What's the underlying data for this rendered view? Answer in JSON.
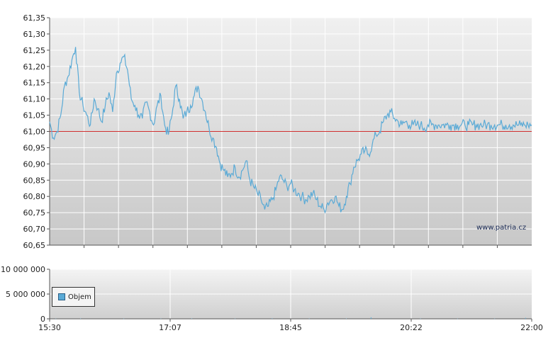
{
  "chart_data": [
    {
      "type": "line",
      "panel": "price",
      "y_ticks": [
        "61,35",
        "61,30",
        "61,25",
        "61,20",
        "61,15",
        "61,10",
        "61,05",
        "61,00",
        "60,95",
        "60,90",
        "60,85",
        "60,80",
        "60,75",
        "60,70",
        "60,65"
      ],
      "ylim": [
        60.65,
        61.35
      ],
      "x_ticks": [
        "15:30",
        "17:07",
        "18:45",
        "20:22",
        "22:00"
      ],
      "reference_value": 61.0,
      "grid": true,
      "series": [
        {
          "color": "#5aaad6",
          "x_minutes": [
            0,
            3,
            6,
            9,
            12,
            15,
            18,
            21,
            24,
            27,
            30,
            33,
            36,
            39,
            42,
            45,
            48,
            51,
            54,
            57,
            60,
            63,
            66,
            69,
            72,
            75,
            78,
            81,
            84,
            87,
            90,
            93,
            96,
            99,
            102,
            105,
            108,
            111,
            114,
            117,
            120,
            123,
            126,
            129,
            132,
            135,
            138,
            141,
            144,
            147,
            150,
            153,
            156,
            159,
            162,
            165,
            168,
            171,
            174,
            177,
            180,
            183,
            186,
            189,
            192,
            195,
            198,
            201,
            204,
            207,
            210,
            213,
            216,
            219,
            222,
            225,
            228,
            231,
            234,
            237,
            240,
            243,
            246,
            249,
            252,
            255,
            258,
            261,
            264,
            267,
            270,
            273,
            276,
            279,
            282,
            285,
            288,
            291,
            294,
            297,
            300,
            303,
            306,
            309,
            312,
            315,
            318,
            321,
            324,
            327,
            330,
            333,
            336,
            339,
            342,
            345,
            348,
            351,
            354,
            357,
            360,
            363,
            366,
            369,
            372,
            375,
            378,
            381,
            384,
            387,
            390
          ],
          "values": [
            61.03,
            60.98,
            61.0,
            61.05,
            61.14,
            61.17,
            61.22,
            61.26,
            61.12,
            61.08,
            61.05,
            61.02,
            61.1,
            61.07,
            61.03,
            61.08,
            61.12,
            61.06,
            61.18,
            61.21,
            61.23,
            61.19,
            61.1,
            61.08,
            61.05,
            61.04,
            61.09,
            61.06,
            61.02,
            61.08,
            61.11,
            61.02,
            60.99,
            61.05,
            61.14,
            61.1,
            61.04,
            61.06,
            61.08,
            61.11,
            61.14,
            61.1,
            61.06,
            61.01,
            60.98,
            60.95,
            60.9,
            60.88,
            60.86,
            60.87,
            60.89,
            60.86,
            60.88,
            60.91,
            60.85,
            60.83,
            60.81,
            60.79,
            60.76,
            60.77,
            60.79,
            60.82,
            60.86,
            60.85,
            60.83,
            60.84,
            60.82,
            60.81,
            60.8,
            60.79,
            60.8,
            60.81,
            60.79,
            60.77,
            60.76,
            60.78,
            60.79,
            60.8,
            60.77,
            60.76,
            60.8,
            60.84,
            60.89,
            60.91,
            60.93,
            60.94,
            60.93,
            60.96,
            60.99,
            61.0,
            61.03,
            61.05,
            61.06,
            61.04,
            61.03,
            61.02,
            61.03,
            61.02,
            61.02,
            61.02,
            61.02,
            61.01,
            61.02,
            61.02,
            61.02,
            61.02,
            61.02,
            61.02,
            61.02,
            61.02,
            61.02,
            61.02,
            61.02,
            61.02,
            61.02,
            61.02,
            61.02,
            61.02,
            61.02,
            61.02,
            61.02,
            61.02,
            61.02,
            61.02,
            61.02,
            61.02,
            61.02,
            61.02,
            61.02,
            61.02,
            61.02
          ]
        }
      ]
    },
    {
      "type": "bar",
      "panel": "volume",
      "y_ticks": [
        "10 000 000",
        "5 000 000",
        "0"
      ],
      "ylim": [
        0,
        10000000
      ],
      "x_ticks": [
        "15:30",
        "17:07",
        "18:45",
        "20:22",
        "22:00"
      ],
      "legend": "Objem",
      "legend_placement": "left",
      "series": [
        {
          "name": "Objem",
          "color": "#5aaad6",
          "x_minutes": [
            5,
            25,
            60,
            90,
            115,
            150,
            180,
            210,
            240,
            260,
            300,
            330,
            360,
            385
          ],
          "values": [
            50000,
            80000,
            40000,
            60000,
            70000,
            50000,
            90000,
            60000,
            70000,
            300000,
            60000,
            40000,
            50000,
            200000
          ]
        }
      ]
    }
  ],
  "watermark": "www.patria.cz"
}
